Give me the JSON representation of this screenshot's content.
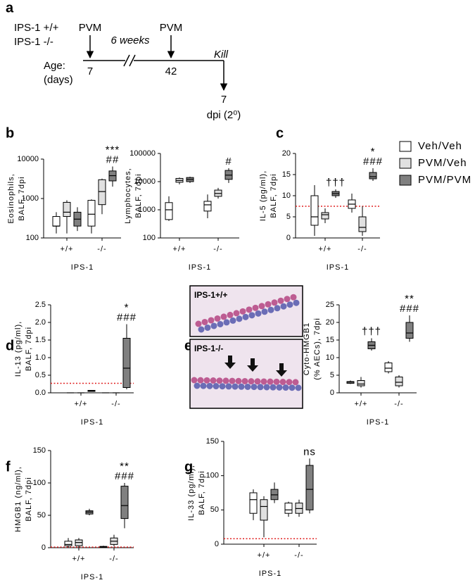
{
  "panel_labels": [
    "a",
    "b",
    "c",
    "d",
    "e",
    "f",
    "g"
  ],
  "timeline": {
    "groups": [
      "IPS-1 +/+",
      "IPS-1 -/-"
    ],
    "treatments": [
      "PVM",
      "PVM"
    ],
    "interval": "6 weeks",
    "endpoint": "Kill",
    "age_label": [
      "Age:",
      "(days)"
    ],
    "ages": [
      "7",
      "42"
    ],
    "dpi_value": "7",
    "dpi_label": "dpi (2⁰)"
  },
  "micrograph": {
    "labels": [
      "IPS-1+/+",
      "IPS-1-/-"
    ]
  },
  "legend": {
    "series": [
      {
        "name": "Veh/Veh",
        "color": "#ffffff"
      },
      {
        "name": "PVM/Veh",
        "color": "#e0e0e0"
      },
      {
        "name": "PVM/PVM",
        "color": "#808080"
      }
    ]
  },
  "chart_data": [
    {
      "type": "box",
      "ylabel": [
        "Eosinophils,",
        "BALF, 7dpi"
      ],
      "xlabel": "IPS-1",
      "categories": [
        "+/+",
        "-/-"
      ],
      "log_scale": true,
      "ylim": [
        100,
        10000
      ],
      "yticks": [
        100,
        1000,
        10000
      ],
      "series": [
        {
          "values": [
            {
              "min": 130,
              "q1": 200,
              "median": 200,
              "q3": 350,
              "max": 450
            },
            {
              "min": 130,
              "q1": 200,
              "median": 400,
              "q3": 900,
              "max": 950
            }
          ]
        },
        {
          "values": [
            {
              "min": 130,
              "q1": 350,
              "median": 450,
              "q3": 800,
              "max": 900
            },
            {
              "min": 400,
              "q1": 700,
              "median": 1500,
              "q3": 3000,
              "max": 3200
            }
          ]
        },
        {
          "values": [
            {
              "min": 150,
              "q1": 200,
              "median": 300,
              "q3": 450,
              "max": 600
            },
            {
              "min": 2000,
              "q1": 2800,
              "median": 3800,
              "q3": 5000,
              "max": 6500
            }
          ]
        }
      ],
      "annotations": [
        {
          "text": "***",
          "category": "-/-",
          "series": "PVM/PVM",
          "color": "#777777"
        },
        {
          "text": "##",
          "category": "-/-",
          "series": "PVM/PVM",
          "color": "#777777"
        }
      ]
    },
    {
      "type": "box",
      "ylabel": [
        "Lymphocytes,",
        "BALF, 7dpi"
      ],
      "xlabel": "IPS-1",
      "categories": [
        "+/+",
        "-/-"
      ],
      "log_scale": true,
      "ylim": [
        100,
        100000
      ],
      "yticks": [
        100,
        1000,
        10000,
        100000
      ],
      "series": [
        {
          "values": [
            {
              "min": 400,
              "q1": 450,
              "median": 1000,
              "q3": 1800,
              "max": 3000
            },
            {
              "min": 500,
              "q1": 900,
              "median": 1500,
              "q3": 2000,
              "max": 3500
            }
          ]
        },
        {
          "values": [
            {
              "min": 8000,
              "q1": 9500,
              "median": 11000,
              "q3": 13000,
              "max": 14000
            },
            {
              "min": 2500,
              "q1": 3000,
              "median": 3800,
              "q3": 5000,
              "max": 6000
            }
          ]
        },
        {
          "values": [
            {
              "min": 9000,
              "q1": 10000,
              "median": 12000,
              "q3": 14000,
              "max": 15000
            },
            {
              "min": 9000,
              "q1": 12000,
              "median": 17000,
              "q3": 25000,
              "max": 30000
            }
          ]
        }
      ],
      "annotations": [
        {
          "text": "#",
          "category": "-/-",
          "series": "PVM/PVM",
          "color": "#777777"
        }
      ]
    },
    {
      "type": "box",
      "ylabel": [
        "IL-5 (pg/ml),",
        "BALF, 7dpi"
      ],
      "xlabel": "IPS-1",
      "categories": [
        "+/+",
        "-/-"
      ],
      "log_scale": false,
      "ylim": [
        0,
        20
      ],
      "yticks": [
        0,
        5,
        10,
        15,
        20
      ],
      "reference_line": {
        "value": 7.5,
        "color": "#e02020"
      },
      "series": [
        {
          "values": [
            {
              "min": 0.5,
              "q1": 3,
              "median": 5,
              "q3": 10,
              "max": 12.5
            },
            {
              "min": 6,
              "q1": 7,
              "median": 8,
              "q3": 9,
              "max": 10.5
            }
          ]
        },
        {
          "values": [
            {
              "min": 3.5,
              "q1": 4.5,
              "median": 5.5,
              "q3": 6,
              "max": 7
            },
            {
              "min": 0.5,
              "q1": 1.5,
              "median": 2.5,
              "q3": 5,
              "max": 7.5
            }
          ]
        },
        {
          "values": [
            {
              "min": 9.5,
              "q1": 10,
              "median": 10.5,
              "q3": 11,
              "max": 11.5
            },
            {
              "min": 13.5,
              "q1": 14,
              "median": 14.5,
              "q3": 15.5,
              "max": 16.5
            }
          ]
        }
      ],
      "annotations": [
        {
          "text": "†††",
          "category": "+/+",
          "series": "PVM/PVM",
          "color": "#333333"
        },
        {
          "text": "*",
          "category": "-/-",
          "series": "PVM/PVM",
          "color": "#000000"
        },
        {
          "text": "###",
          "category": "-/-",
          "series": "PVM/PVM",
          "color": "#777777"
        }
      ]
    },
    {
      "type": "box",
      "ylabel": [
        "IL-13 (pg/ml),",
        "BALF, 7dpi"
      ],
      "xlabel": "IPS-1",
      "categories": [
        "+/+",
        "-/-"
      ],
      "log_scale": false,
      "ylim": [
        0,
        2.5
      ],
      "yticks": [
        {
          "value": 0,
          "label": "0.0"
        },
        0.5,
        {
          "value": 1,
          "label": "1.0"
        },
        1.5,
        {
          "value": 2,
          "label": "2.0"
        },
        2.5
      ],
      "reference_line": {
        "value": 0.27,
        "color": "#e02020"
      },
      "series": [
        {
          "values": [
            {
              "min": 0,
              "q1": 0,
              "median": 0,
              "q3": 0,
              "max": 0
            },
            {
              "min": 0,
              "q1": 0,
              "median": 0,
              "q3": 0,
              "max": 0
            }
          ]
        },
        {
          "values": [
            {
              "min": 0,
              "q1": 0,
              "median": 0,
              "q3": 0,
              "max": 0
            },
            {
              "min": 0,
              "q1": 0,
              "median": 0,
              "q3": 0,
              "max": 0
            }
          ]
        },
        {
          "values": [
            {
              "min": 0.03,
              "q1": 0.04,
              "median": 0.05,
              "q3": 0.07,
              "max": 0.08
            },
            {
              "min": 0.1,
              "q1": 0.15,
              "median": 0.7,
              "q3": 1.55,
              "max": 1.95
            }
          ]
        }
      ],
      "annotations": [
        {
          "text": "*",
          "category": "-/-",
          "series": "PVM/PVM",
          "color": "#000000"
        },
        {
          "text": "###",
          "category": "-/-",
          "series": "PVM/PVM",
          "color": "#777777"
        }
      ]
    },
    {
      "type": "box",
      "ylabel": [
        "Cyto-HMGB1",
        "(% AECs), 7dpi"
      ],
      "xlabel": "IPS-1",
      "categories": [
        "+/+",
        "-/-"
      ],
      "log_scale": false,
      "ylim": [
        0,
        25
      ],
      "yticks": [
        0,
        5,
        10,
        15,
        20,
        25
      ],
      "series": [
        {
          "values": [
            {
              "min": 2.5,
              "q1": 2.7,
              "median": 3,
              "q3": 3.2,
              "max": 3.5
            },
            {
              "min": 5.5,
              "q1": 6,
              "median": 7,
              "q3": 8.5,
              "max": 9
            }
          ]
        },
        {
          "values": [
            {
              "min": 1.5,
              "q1": 2,
              "median": 2.5,
              "q3": 3.5,
              "max": 4.5
            },
            {
              "min": 1.5,
              "q1": 2,
              "median": 3,
              "q3": 4.5,
              "max": 5
            }
          ]
        },
        {
          "values": [
            {
              "min": 12,
              "q1": 12.5,
              "median": 13.5,
              "q3": 14.5,
              "max": 15.5
            },
            {
              "min": 14.5,
              "q1": 15.5,
              "median": 17,
              "q3": 20,
              "max": 22
            }
          ]
        }
      ],
      "annotations": [
        {
          "text": "†††",
          "category": "+/+",
          "series": "PVM/PVM",
          "color": "#000000"
        },
        {
          "text": "**",
          "category": "-/-",
          "series": "PVM/PVM",
          "color": "#000000"
        },
        {
          "text": "###",
          "category": "-/-",
          "series": "PVM/PVM",
          "color": "#000000"
        }
      ]
    },
    {
      "type": "box",
      "ylabel": [
        "HMGB1 (ng/ml),",
        "BALF, 7dpi"
      ],
      "xlabel": "IPS-1",
      "categories": [
        "+/+",
        "-/-"
      ],
      "log_scale": false,
      "ylim": [
        0,
        150
      ],
      "yticks": [
        0,
        50,
        100,
        150
      ],
      "reference_line": {
        "value": 1,
        "color": "#e02020"
      },
      "series": [
        {
          "values": [
            {
              "min": 0,
              "q1": 3,
              "median": 5,
              "q3": 10,
              "max": 15
            },
            {
              "min": 0,
              "q1": 0,
              "median": 1,
              "q3": 2,
              "max": 3
            }
          ]
        },
        {
          "values": [
            {
              "min": 0,
              "q1": 3,
              "median": 8,
              "q3": 12,
              "max": 15
            },
            {
              "min": 2,
              "q1": 5,
              "median": 10,
              "q3": 15,
              "max": 20
            }
          ]
        },
        {
          "values": [
            {
              "min": 50,
              "q1": 52,
              "median": 55,
              "q3": 57,
              "max": 60
            },
            {
              "min": 30,
              "q1": 45,
              "median": 65,
              "q3": 95,
              "max": 100
            }
          ]
        }
      ],
      "annotations": [
        {
          "text": "**",
          "category": "-/-",
          "series": "PVM/PVM",
          "color": "#000000"
        },
        {
          "text": "###",
          "category": "-/-",
          "series": "PVM/PVM",
          "color": "#000000"
        }
      ]
    },
    {
      "type": "box",
      "ylabel": [
        "IL-33 (pg/ml),",
        "BALF, 7dpi"
      ],
      "xlabel": "IPS-1",
      "categories": [
        "+/+",
        "-/-"
      ],
      "log_scale": false,
      "ylim": [
        0,
        150
      ],
      "yticks": [
        0,
        50,
        100,
        150
      ],
      "reference_line": {
        "value": 8,
        "color": "#e02020"
      },
      "series": [
        {
          "values": [
            {
              "min": 35,
              "q1": 45,
              "median": 65,
              "q3": 75,
              "max": 80
            },
            {
              "min": 40,
              "q1": 45,
              "median": 50,
              "q3": 60,
              "max": 62
            }
          ]
        },
        {
          "values": [
            {
              "min": 10,
              "q1": 35,
              "median": 55,
              "q3": 65,
              "max": 70
            },
            {
              "min": 40,
              "q1": 45,
              "median": 52,
              "q3": 60,
              "max": 65
            }
          ]
        },
        {
          "values": [
            {
              "min": 60,
              "q1": 65,
              "median": 72,
              "q3": 80,
              "max": 90
            },
            {
              "min": 45,
              "q1": 50,
              "median": 80,
              "q3": 115,
              "max": 125
            }
          ]
        }
      ],
      "annotations": [
        {
          "text": "ns",
          "category": "-/-",
          "series": "PVM/PVM",
          "color": "#000000"
        }
      ]
    }
  ]
}
